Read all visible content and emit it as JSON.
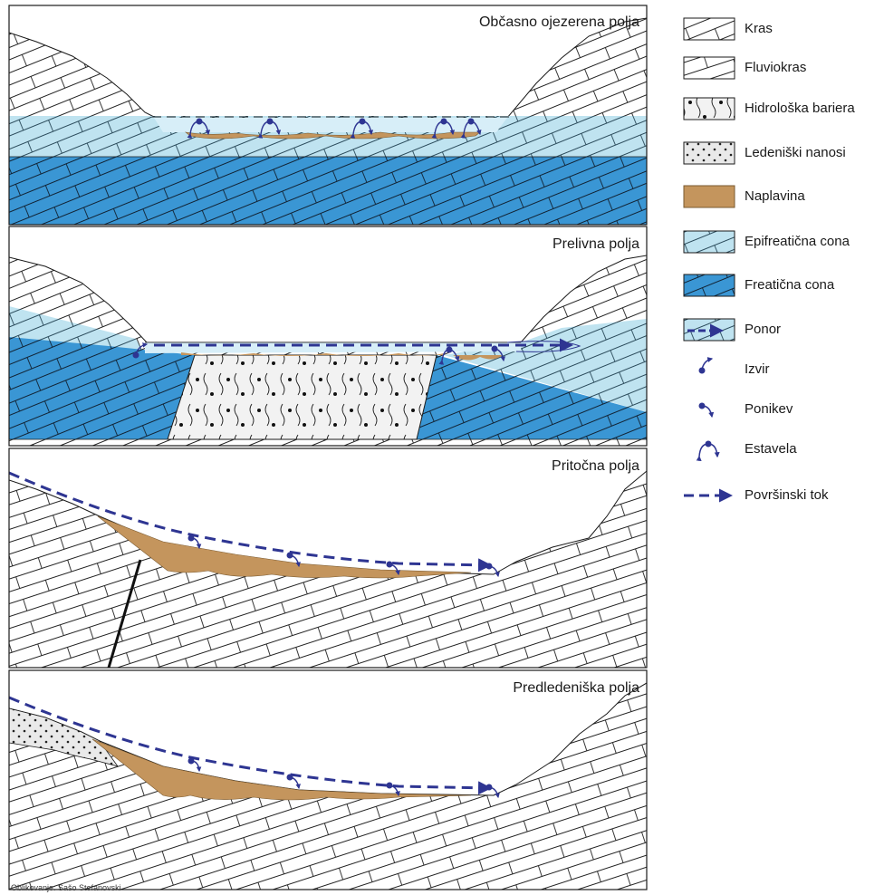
{
  "panels": [
    {
      "title": "Občasno ojezerena polja"
    },
    {
      "title": "Prelivna polja"
    },
    {
      "title": "Pritočna polja"
    },
    {
      "title": "Predledeniška polja"
    }
  ],
  "legend": [
    {
      "label": "Kras",
      "icon": "kras-swatch"
    },
    {
      "label": "Fluviokras",
      "icon": "fluviokras-swatch"
    },
    {
      "label": "Hidrološka bariera",
      "icon": "hydrological-barrier-swatch"
    },
    {
      "label": "Ledeniški nanosi",
      "icon": "glacial-deposits-swatch"
    },
    {
      "label": "Naplavina",
      "icon": "alluvium-swatch"
    },
    {
      "label": "Epifreatična cona",
      "icon": "epiphreatic-zone-swatch"
    },
    {
      "label": "Freatična cona",
      "icon": "phreatic-zone-swatch"
    },
    {
      "label": "Ponor",
      "icon": "ponor-icon"
    },
    {
      "label": "Izvir",
      "icon": "spring-icon"
    },
    {
      "label": "Ponikev",
      "icon": "swallow-hole-icon"
    },
    {
      "label": "Estavela",
      "icon": "estavelle-icon"
    },
    {
      "label": "Površinski tok",
      "icon": "surface-flow-arrow"
    }
  ],
  "credit": "Oblikovanje: Sašo Stefanovski",
  "colors": {
    "epiphreatic": "#bfe3f0",
    "phreatic": "#3a96d4",
    "alluvium": "#c4955d",
    "barrier": "#f2f2f2",
    "symbol": "#2e3592",
    "line": "#1a1a1a"
  }
}
